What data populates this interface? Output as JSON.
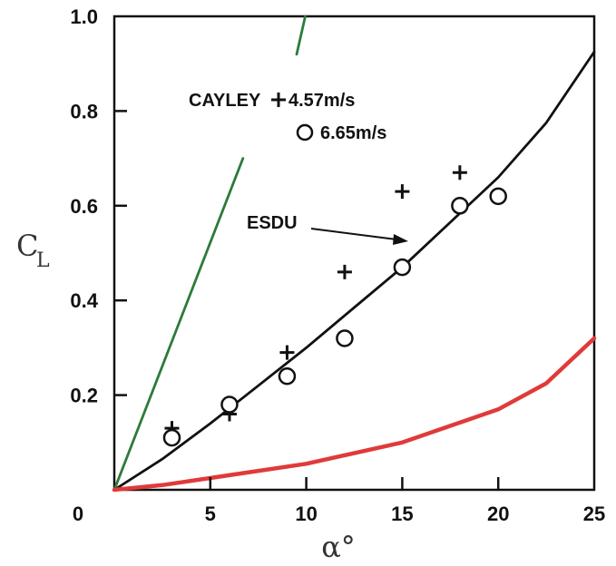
{
  "chart_data": {
    "type": "scatter",
    "xlabel": "α°",
    "ylabel": "C",
    "ylabel_sub": "L",
    "xlim": [
      0,
      25
    ],
    "ylim": [
      0,
      1.0
    ],
    "grid": false,
    "x_ticks": [
      {
        "value": 0,
        "label": "0"
      },
      {
        "value": 5,
        "label": "5"
      },
      {
        "value": 10,
        "label": "10"
      },
      {
        "value": 15,
        "label": "15"
      },
      {
        "value": 20,
        "label": "20"
      },
      {
        "value": 25,
        "label": "25"
      }
    ],
    "y_ticks": [
      {
        "value": 0.2,
        "label": "0.2"
      },
      {
        "value": 0.4,
        "label": "0.4"
      },
      {
        "value": 0.6,
        "label": "0.6"
      },
      {
        "value": 0.8,
        "label": "0.8"
      },
      {
        "value": 1.0,
        "label": "1.0"
      }
    ],
    "legend": {
      "title": "CAYLEY",
      "entries": [
        {
          "marker": "plus",
          "label": "4.57m/s"
        },
        {
          "marker": "circle",
          "label": "6.65m/s"
        }
      ]
    },
    "series": [
      {
        "name": "4.57m/s",
        "marker": "plus",
        "points": [
          [
            3.0,
            0.13
          ],
          [
            6.0,
            0.16
          ],
          [
            9.0,
            0.29
          ],
          [
            12.0,
            0.46
          ],
          [
            15.0,
            0.63
          ],
          [
            18.0,
            0.67
          ]
        ]
      },
      {
        "name": "6.65m/s",
        "marker": "circle",
        "points": [
          [
            3.0,
            0.11
          ],
          [
            6.0,
            0.18
          ],
          [
            9.0,
            0.24
          ],
          [
            12.0,
            0.32
          ],
          [
            15.0,
            0.47
          ],
          [
            18.0,
            0.6
          ],
          [
            20.0,
            0.62
          ]
        ]
      },
      {
        "name": "ESDU",
        "marker": "line",
        "color": "#111111",
        "points": [
          [
            0,
            0
          ],
          [
            2.5,
            0.065
          ],
          [
            5,
            0.14
          ],
          [
            7.5,
            0.22
          ],
          [
            10,
            0.3
          ],
          [
            12.5,
            0.385
          ],
          [
            15,
            0.47
          ],
          [
            17.5,
            0.565
          ],
          [
            20,
            0.66
          ],
          [
            22.5,
            0.775
          ],
          [
            25,
            0.925
          ]
        ]
      },
      {
        "marker": "line",
        "color": "#2d7a3a",
        "points": [
          [
            0,
            0
          ],
          [
            6.7,
            0.7
          ]
        ]
      },
      {
        "marker": "line",
        "color": "#2d7a3a",
        "points": [
          [
            9.5,
            0.92
          ],
          [
            9.95,
            1.0
          ]
        ]
      },
      {
        "marker": "line",
        "color": "#e03a3a",
        "points": [
          [
            0,
            0
          ],
          [
            2.5,
            0.01
          ],
          [
            5,
            0.025
          ],
          [
            10,
            0.055
          ],
          [
            15,
            0.1
          ],
          [
            20,
            0.17
          ],
          [
            22.5,
            0.225
          ],
          [
            25,
            0.32
          ]
        ]
      }
    ],
    "annotations": [
      {
        "text": "ESDU",
        "arrow_to": [
          15.2,
          0.52
        ]
      }
    ]
  }
}
